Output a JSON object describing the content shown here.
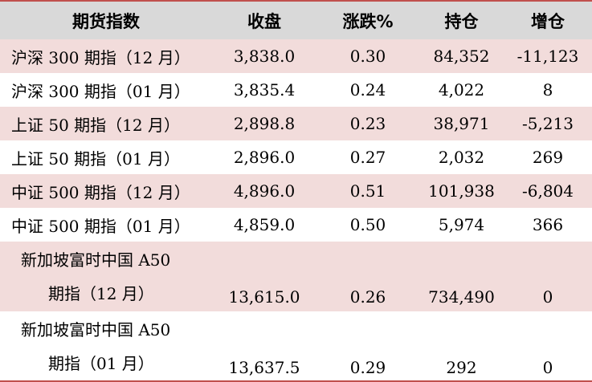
{
  "headers": {
    "name": "期货指数",
    "close": "收盘",
    "change": "涨跌%",
    "position": "持仓",
    "position_change": "增仓"
  },
  "rows": [
    {
      "name": "沪深 300 期指（12 月）",
      "close": "3,838.0",
      "change": "0.30",
      "position": "84,352",
      "position_change": "-11,123"
    },
    {
      "name": "沪深 300 期指（01 月）",
      "close": "3,835.4",
      "change": "0.24",
      "position": "4,022",
      "position_change": "8"
    },
    {
      "name": "上证 50 期指（12 月）",
      "close": "2,898.8",
      "change": "0.23",
      "position": "38,971",
      "position_change": "-5,213"
    },
    {
      "name": "上证 50 期指（01 月）",
      "close": "2,896.0",
      "change": "0.27",
      "position": "2,032",
      "position_change": "269"
    },
    {
      "name": "中证 500 期指（12 月）",
      "close": "4,896.0",
      "change": "0.51",
      "position": "101,938",
      "position_change": "-6,804"
    },
    {
      "name": "中证 500 期指（01 月）",
      "close": "4,859.0",
      "change": "0.50",
      "position": "5,974",
      "position_change": "366"
    },
    {
      "name_line1": "新加坡富时中国 A50",
      "name_line2": "期指（12 月）",
      "close": "13,615.0",
      "change": "0.26",
      "position": "734,490",
      "position_change": "0"
    },
    {
      "name_line1": "新加坡富时中国 A50",
      "name_line2": "期指（01 月）",
      "close": "13,637.5",
      "change": "0.29",
      "position": "292",
      "position_change": "0"
    }
  ]
}
